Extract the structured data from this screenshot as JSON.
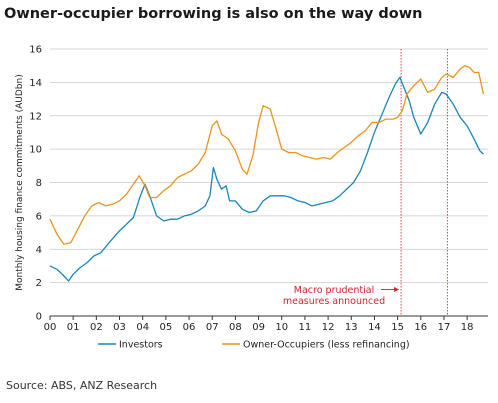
{
  "title": "Owner-occupier borrowing is also on the way down",
  "source": "Source: ABS, ANZ Research",
  "chart_data": {
    "type": "line",
    "ylabel": "Monthly housing finance commitments (AUDbn)",
    "xlabel": "",
    "ylim": [
      0,
      16
    ],
    "yticks": [
      0,
      2,
      4,
      6,
      8,
      10,
      12,
      14,
      16
    ],
    "xlim": [
      2000,
      2018.9
    ],
    "xticks": [
      {
        "value": 2000,
        "label": "00"
      },
      {
        "value": 2001,
        "label": "01"
      },
      {
        "value": 2002,
        "label": "02"
      },
      {
        "value": 2003,
        "label": "03"
      },
      {
        "value": 2004,
        "label": "04"
      },
      {
        "value": 2005,
        "label": "05"
      },
      {
        "value": 2006,
        "label": "06"
      },
      {
        "value": 2007,
        "label": "07"
      },
      {
        "value": 2008,
        "label": "08"
      },
      {
        "value": 2009,
        "label": "09"
      },
      {
        "value": 2010,
        "label": "10"
      },
      {
        "value": 2011,
        "label": "11"
      },
      {
        "value": 2012,
        "label": "12"
      },
      {
        "value": 2013,
        "label": "13"
      },
      {
        "value": 2014,
        "label": "14"
      },
      {
        "value": 2015,
        "label": "15"
      },
      {
        "value": 2016,
        "label": "16"
      },
      {
        "value": 2017,
        "label": "17"
      },
      {
        "value": 2018,
        "label": "18"
      }
    ],
    "grid": "horizontal",
    "legend": "bottom",
    "series": [
      {
        "name": "Investors",
        "color": "#1a85b8",
        "points": [
          [
            2000.0,
            3.0
          ],
          [
            2000.3,
            2.8
          ],
          [
            2000.6,
            2.4
          ],
          [
            2000.8,
            2.1
          ],
          [
            2001.0,
            2.5
          ],
          [
            2001.3,
            2.9
          ],
          [
            2001.6,
            3.2
          ],
          [
            2001.9,
            3.6
          ],
          [
            2002.2,
            3.8
          ],
          [
            2002.5,
            4.3
          ],
          [
            2002.8,
            4.8
          ],
          [
            2003.0,
            5.1
          ],
          [
            2003.3,
            5.5
          ],
          [
            2003.6,
            5.9
          ],
          [
            2003.9,
            7.2
          ],
          [
            2004.1,
            7.9
          ],
          [
            2004.3,
            7.2
          ],
          [
            2004.6,
            6.0
          ],
          [
            2004.9,
            5.7
          ],
          [
            2005.2,
            5.8
          ],
          [
            2005.5,
            5.8
          ],
          [
            2005.8,
            6.0
          ],
          [
            2006.1,
            6.1
          ],
          [
            2006.4,
            6.3
          ],
          [
            2006.7,
            6.6
          ],
          [
            2006.9,
            7.2
          ],
          [
            2007.05,
            8.9
          ],
          [
            2007.2,
            8.2
          ],
          [
            2007.4,
            7.6
          ],
          [
            2007.6,
            7.8
          ],
          [
            2007.75,
            6.9
          ],
          [
            2008.0,
            6.9
          ],
          [
            2008.3,
            6.4
          ],
          [
            2008.6,
            6.2
          ],
          [
            2008.9,
            6.3
          ],
          [
            2009.2,
            6.9
          ],
          [
            2009.5,
            7.2
          ],
          [
            2009.8,
            7.2
          ],
          [
            2010.1,
            7.2
          ],
          [
            2010.4,
            7.1
          ],
          [
            2010.7,
            6.9
          ],
          [
            2011.0,
            6.8
          ],
          [
            2011.3,
            6.6
          ],
          [
            2011.6,
            6.7
          ],
          [
            2011.9,
            6.8
          ],
          [
            2012.2,
            6.9
          ],
          [
            2012.5,
            7.2
          ],
          [
            2012.8,
            7.6
          ],
          [
            2013.1,
            8.0
          ],
          [
            2013.4,
            8.7
          ],
          [
            2013.7,
            9.8
          ],
          [
            2014.0,
            11.0
          ],
          [
            2014.3,
            12.0
          ],
          [
            2014.6,
            13.0
          ],
          [
            2014.9,
            13.9
          ],
          [
            2015.1,
            14.3
          ],
          [
            2015.3,
            13.6
          ],
          [
            2015.5,
            12.9
          ],
          [
            2015.7,
            11.9
          ],
          [
            2016.0,
            10.9
          ],
          [
            2016.3,
            11.6
          ],
          [
            2016.6,
            12.7
          ],
          [
            2016.9,
            13.4
          ],
          [
            2017.1,
            13.3
          ],
          [
            2017.4,
            12.7
          ],
          [
            2017.7,
            11.9
          ],
          [
            2018.0,
            11.4
          ],
          [
            2018.3,
            10.6
          ],
          [
            2018.55,
            9.9
          ],
          [
            2018.7,
            9.7
          ]
        ]
      },
      {
        "name": "Owner-Occupiers (less refinancing)",
        "color": "#e8941c",
        "points": [
          [
            2000.0,
            5.8
          ],
          [
            2000.3,
            4.9
          ],
          [
            2000.6,
            4.3
          ],
          [
            2000.9,
            4.4
          ],
          [
            2001.2,
            5.2
          ],
          [
            2001.5,
            6.0
          ],
          [
            2001.8,
            6.6
          ],
          [
            2002.1,
            6.8
          ],
          [
            2002.4,
            6.6
          ],
          [
            2002.7,
            6.7
          ],
          [
            2003.0,
            6.9
          ],
          [
            2003.3,
            7.3
          ],
          [
            2003.6,
            7.9
          ],
          [
            2003.85,
            8.4
          ],
          [
            2004.1,
            7.8
          ],
          [
            2004.3,
            7.1
          ],
          [
            2004.6,
            7.1
          ],
          [
            2004.9,
            7.5
          ],
          [
            2005.2,
            7.8
          ],
          [
            2005.5,
            8.3
          ],
          [
            2005.8,
            8.5
          ],
          [
            2006.1,
            8.7
          ],
          [
            2006.4,
            9.1
          ],
          [
            2006.7,
            9.8
          ],
          [
            2007.0,
            11.4
          ],
          [
            2007.2,
            11.7
          ],
          [
            2007.4,
            10.9
          ],
          [
            2007.7,
            10.6
          ],
          [
            2008.0,
            9.9
          ],
          [
            2008.3,
            8.8
          ],
          [
            2008.5,
            8.5
          ],
          [
            2008.75,
            9.6
          ],
          [
            2009.0,
            11.6
          ],
          [
            2009.2,
            12.6
          ],
          [
            2009.5,
            12.4
          ],
          [
            2009.8,
            11.0
          ],
          [
            2010.0,
            10.0
          ],
          [
            2010.3,
            9.8
          ],
          [
            2010.6,
            9.8
          ],
          [
            2010.9,
            9.6
          ],
          [
            2011.2,
            9.5
          ],
          [
            2011.5,
            9.4
          ],
          [
            2011.8,
            9.5
          ],
          [
            2012.1,
            9.4
          ],
          [
            2012.4,
            9.8
          ],
          [
            2012.7,
            10.1
          ],
          [
            2013.0,
            10.4
          ],
          [
            2013.3,
            10.8
          ],
          [
            2013.6,
            11.1
          ],
          [
            2013.9,
            11.6
          ],
          [
            2014.2,
            11.6
          ],
          [
            2014.5,
            11.8
          ],
          [
            2014.8,
            11.8
          ],
          [
            2015.0,
            11.9
          ],
          [
            2015.2,
            12.3
          ],
          [
            2015.4,
            13.3
          ],
          [
            2015.7,
            13.8
          ],
          [
            2016.0,
            14.2
          ],
          [
            2016.3,
            13.4
          ],
          [
            2016.6,
            13.6
          ],
          [
            2016.9,
            14.3
          ],
          [
            2017.1,
            14.5
          ],
          [
            2017.4,
            14.3
          ],
          [
            2017.7,
            14.8
          ],
          [
            2017.9,
            15.0
          ],
          [
            2018.1,
            14.9
          ],
          [
            2018.3,
            14.6
          ],
          [
            2018.5,
            14.6
          ],
          [
            2018.7,
            13.3
          ]
        ]
      }
    ],
    "annotations": [
      {
        "type": "vline",
        "x": 2015.15,
        "color": "#e8404a"
      },
      {
        "type": "vline",
        "x": 2017.15,
        "color": "#e8404a"
      },
      {
        "type": "text",
        "lines": [
          "Macro prudential",
          "measures announced"
        ],
        "color": "#d2232a",
        "arrow_to_x": 2015.15,
        "arrow_y": 1.6
      }
    ]
  }
}
